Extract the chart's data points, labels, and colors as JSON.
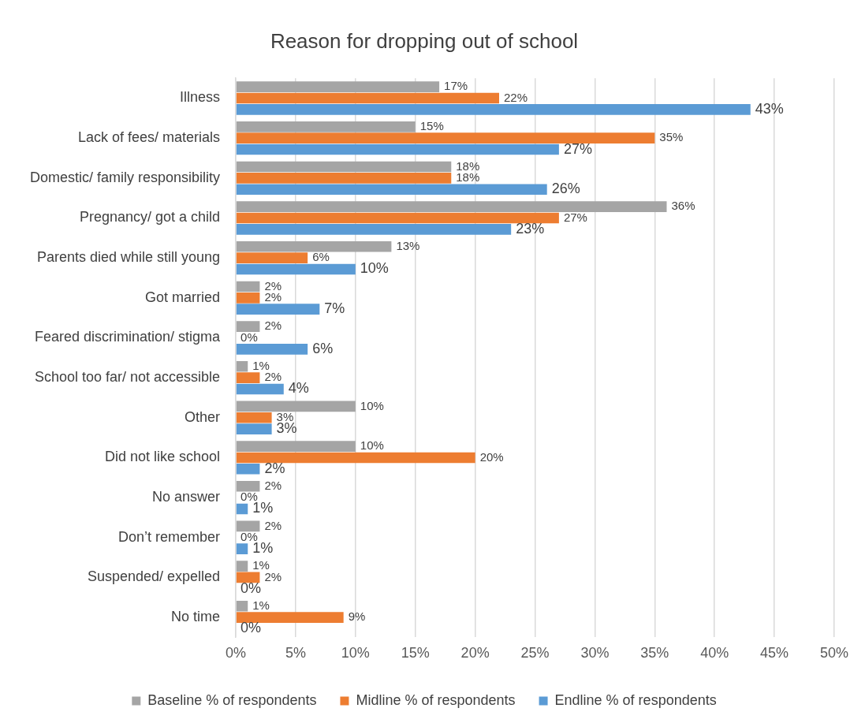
{
  "chart_data": {
    "type": "bar",
    "orientation": "horizontal",
    "title": "Reason for dropping out of school",
    "categories": [
      "Illness",
      "Lack of fees/ materials",
      "Domestic/ family responsibility",
      "Pregnancy/ got a child",
      "Parents died while still young",
      "Got married",
      "Feared discrimination/ stigma",
      "School too far/ not accessible",
      "Other",
      "Did not like school",
      "No answer",
      "Don’t remember",
      "Suspended/ expelled",
      "No time"
    ],
    "series": [
      {
        "name": "Baseline % of respondents",
        "color": "#a5a5a5",
        "values": [
          17,
          15,
          18,
          36,
          13,
          2,
          2,
          1,
          10,
          10,
          2,
          2,
          1,
          1
        ],
        "value_labels": [
          "17%",
          "15%",
          "18%",
          "36%",
          "13%",
          "2%",
          "2%",
          "1%",
          "10%",
          "10%",
          "2%",
          "2%",
          "1%",
          "1%"
        ]
      },
      {
        "name": "Midline % of respondents",
        "color": "#ed7d31",
        "values": [
          22,
          35,
          18,
          27,
          6,
          2,
          0,
          2,
          3,
          20,
          0,
          0,
          2,
          9
        ],
        "value_labels": [
          "22%",
          "35%",
          "18%",
          "27%",
          "6%",
          "2%",
          "0%",
          "2%",
          "3%",
          "20%",
          "0%",
          "0%",
          "2%",
          "9%"
        ]
      },
      {
        "name": "Endline % of respondents",
        "color": "#5b9bd5",
        "values": [
          43,
          27,
          26,
          23,
          10,
          7,
          6,
          4,
          3,
          2,
          1,
          1,
          0,
          0
        ],
        "value_labels": [
          "43%",
          "27%",
          "26%",
          "23%",
          "10%",
          "7%",
          "6%",
          "4%",
          "3%",
          "2%",
          "1%",
          "1%",
          "0%",
          "0%"
        ]
      }
    ],
    "xlim": [
      0,
      50
    ],
    "xticks": [
      {
        "value": 0,
        "label": "0%"
      },
      {
        "value": 5,
        "label": "5%"
      },
      {
        "value": 10,
        "label": "10%"
      },
      {
        "value": 15,
        "label": "15%"
      },
      {
        "value": 20,
        "label": "20%"
      },
      {
        "value": 25,
        "label": "25%"
      },
      {
        "value": 30,
        "label": "30%"
      },
      {
        "value": 35,
        "label": "35%"
      },
      {
        "value": 40,
        "label": "40%"
      },
      {
        "value": 45,
        "label": "45%"
      },
      {
        "value": 50,
        "label": "50%"
      }
    ],
    "grid": "x",
    "legend": "bottom"
  }
}
